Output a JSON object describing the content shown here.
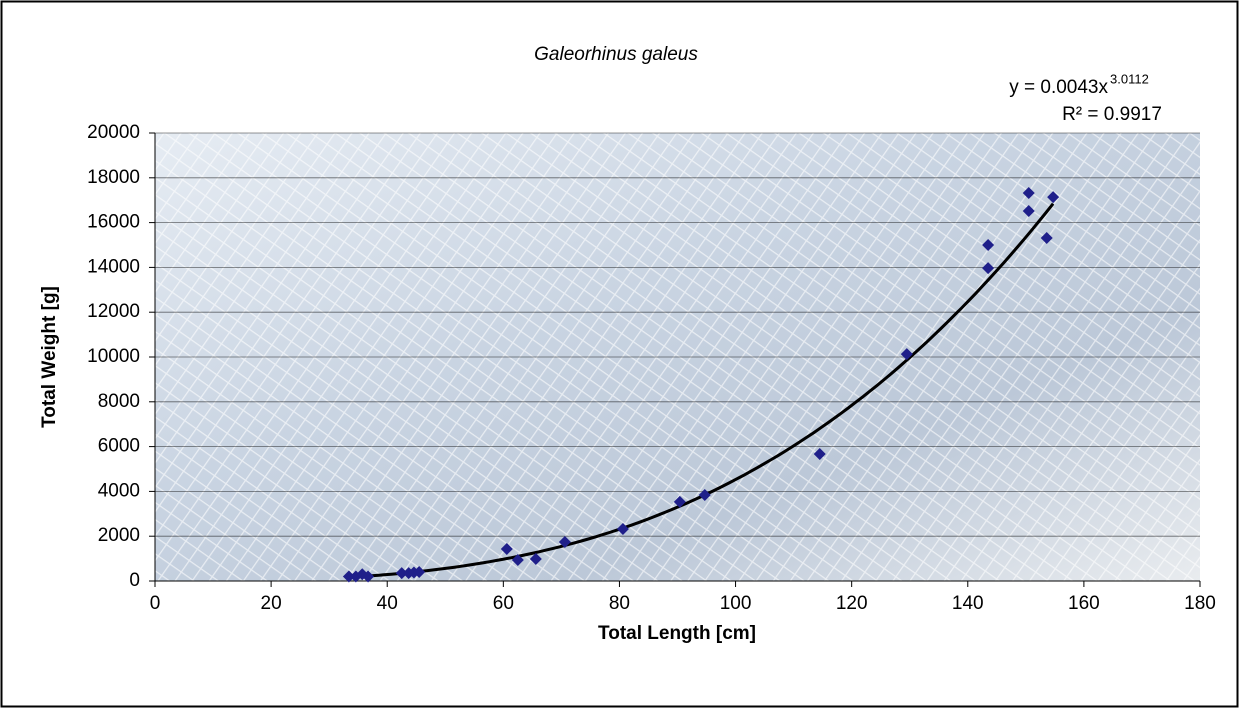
{
  "chart_data": {
    "type": "scatter",
    "title": "Galeorhinus galeus",
    "x_label": "Total Length [cm]",
    "y_label": "Total Weight [g]",
    "equation_prefix": "y = 0.0043x",
    "equation_exponent": "3.0112",
    "r2_label": "R² = 0.9917",
    "trendline": {
      "coefficient": 0.0043,
      "exponent": 3.0112,
      "color": "#000000"
    },
    "x": [
      33.4,
      34.6,
      35.7,
      36.7,
      42.5,
      43.7,
      44.6,
      45.5,
      60.6,
      62.5,
      65.6,
      70.6,
      80.6,
      90.4,
      94.7,
      114.5,
      129.5,
      143.5,
      143.5,
      150.5,
      150.5,
      153.6,
      154.7
    ],
    "series": [
      {
        "name": "Galeorhinus galeus",
        "color": "#1f1f8a",
        "values": [
          200,
          200,
          300,
          200,
          350,
          350,
          380,
          400,
          1430,
          940,
          980,
          1740,
          2320,
          3530,
          3840,
          5670,
          10130,
          15000,
          13970,
          17320,
          16520,
          15310,
          17140
        ]
      }
    ],
    "xlim": [
      0,
      180
    ],
    "xticks": [
      0,
      20,
      40,
      60,
      80,
      100,
      120,
      140,
      160,
      180
    ],
    "ylim": [
      0,
      20000
    ],
    "yticks": [
      0,
      2000,
      4000,
      6000,
      8000,
      10000,
      12000,
      14000,
      16000,
      18000,
      20000
    ],
    "grid": true
  }
}
